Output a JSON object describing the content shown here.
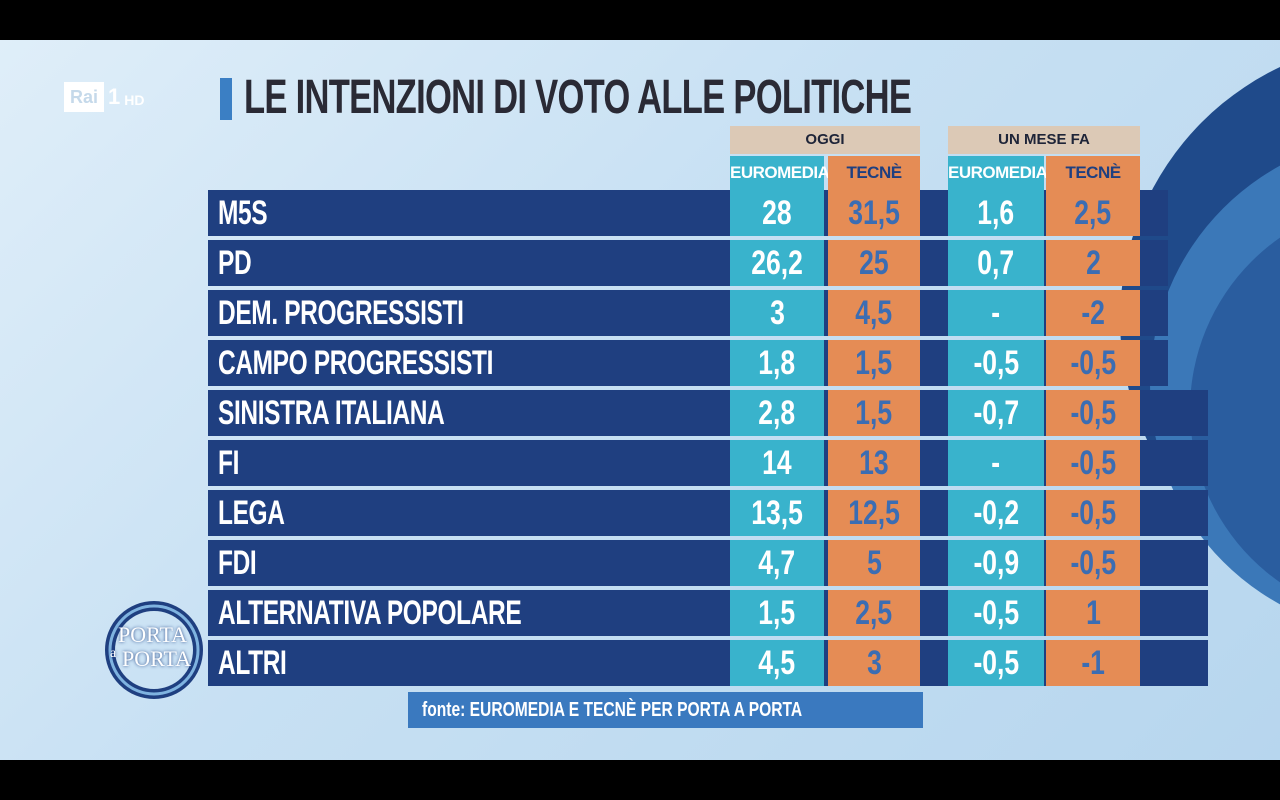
{
  "channel": {
    "logo_main": "Rai",
    "logo_num": "1",
    "logo_hd": "HD"
  },
  "title": "LE INTENZIONI DI VOTO ALLE POLITICHE",
  "groups": {
    "oggi": "OGGI",
    "mese": "UN MESE FA"
  },
  "columns": {
    "euromedia": "EUROMEDIA",
    "tecne": "TECNÈ"
  },
  "rows": [
    {
      "party": "M5S",
      "e_oggi": "28",
      "t_oggi": "31,5",
      "e_mese": "1,6",
      "t_mese": "2,5"
    },
    {
      "party": "PD",
      "e_oggi": "26,2",
      "t_oggi": "25",
      "e_mese": "0,7",
      "t_mese": "2"
    },
    {
      "party": "DEM. PROGRESSISTI",
      "e_oggi": "3",
      "t_oggi": "4,5",
      "e_mese": "-",
      "t_mese": "-2"
    },
    {
      "party": "CAMPO PROGRESSISTI",
      "e_oggi": "1,8",
      "t_oggi": "1,5",
      "e_mese": "-0,5",
      "t_mese": "-0,5"
    },
    {
      "party": "SINISTRA ITALIANA",
      "e_oggi": "2,8",
      "t_oggi": "1,5",
      "e_mese": "-0,7",
      "t_mese": "-0,5"
    },
    {
      "party": "FI",
      "e_oggi": "14",
      "t_oggi": "13",
      "e_mese": "-",
      "t_mese": "-0,5"
    },
    {
      "party": "LEGA",
      "e_oggi": "13,5",
      "t_oggi": "12,5",
      "e_mese": "-0,2",
      "t_mese": "-0,5"
    },
    {
      "party": "FDI",
      "e_oggi": "4,7",
      "t_oggi": "5",
      "e_mese": "-0,9",
      "t_mese": "-0,5"
    },
    {
      "party": "ALTERNATIVA POPOLARE",
      "e_oggi": "1,5",
      "t_oggi": "2,5",
      "e_mese": "-0,5",
      "t_mese": "1"
    },
    {
      "party": "ALTRI",
      "e_oggi": "4,5",
      "t_oggi": "3",
      "e_mese": "-0,5",
      "t_mese": "-1"
    }
  ],
  "source": "fonte: EUROMEDIA E TECNÈ PER PORTA A PORTA",
  "program": {
    "line1": "PORTA",
    "line2": "a",
    "line3": "PORTA"
  },
  "colors": {
    "row_bg": "#1f3f80",
    "euromedia": "#39b3cc",
    "tecne": "#e58c55",
    "header": "#dcc9b6"
  }
}
